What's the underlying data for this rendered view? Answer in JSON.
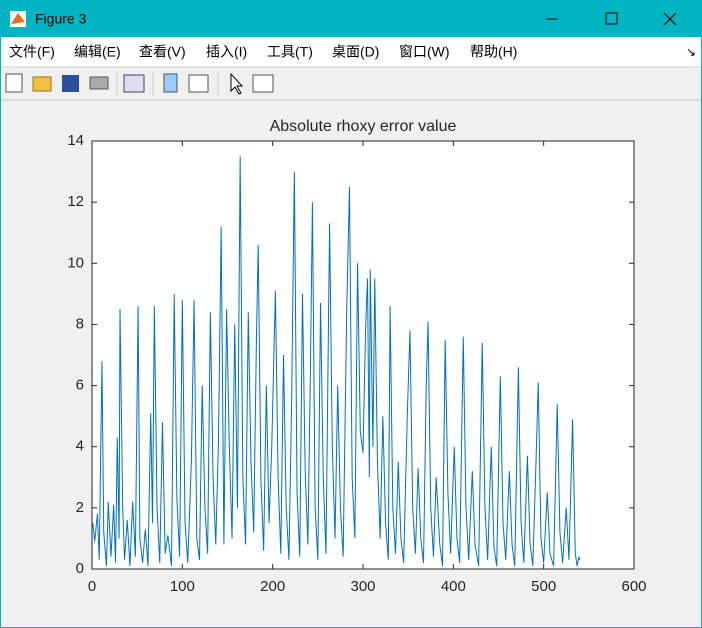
{
  "window": {
    "title": "Figure 3",
    "menu": [
      "文件(F)",
      "编辑(E)",
      "查看(V)",
      "插入(I)",
      "工具(T)",
      "桌面(D)",
      "窗口(W)",
      "帮助(H)"
    ],
    "menu_arrow": "↘"
  },
  "chart_data": {
    "type": "line",
    "title": "Absolute rhoxy error value",
    "x": [
      1,
      3,
      6,
      8,
      11,
      13,
      16,
      18,
      21,
      24,
      26,
      28,
      30,
      31,
      34,
      36,
      39,
      42,
      45,
      48,
      51,
      53,
      56,
      59,
      62,
      65,
      67,
      69,
      72,
      75,
      78,
      81,
      84,
      88,
      91,
      94,
      97,
      100,
      103,
      106,
      110,
      113,
      116,
      119,
      122,
      125,
      128,
      131,
      134,
      137,
      140,
      143,
      146,
      149,
      152,
      155,
      158,
      161,
      164,
      167,
      170,
      173,
      176,
      179,
      182,
      184,
      187,
      190,
      193,
      196,
      199,
      203,
      206,
      209,
      212,
      215,
      218,
      221,
      224,
      227,
      230,
      233,
      236,
      239,
      242,
      244,
      247,
      250,
      253,
      256,
      259,
      263,
      266,
      269,
      272,
      275,
      278,
      282,
      285,
      288,
      291,
      294,
      297,
      300,
      303,
      305,
      307,
      308,
      311,
      313,
      316,
      319,
      322,
      325,
      328,
      330,
      333,
      336,
      339,
      342,
      345,
      349,
      352,
      355,
      358,
      361,
      364,
      367,
      370,
      372,
      375,
      378,
      381,
      385,
      388,
      391,
      394,
      397,
      401,
      404,
      407,
      411,
      414,
      417,
      421,
      424,
      428,
      432,
      435,
      438,
      442,
      445,
      448,
      452,
      455,
      458,
      462,
      465,
      468,
      472,
      475,
      478,
      482,
      485,
      488,
      491,
      494,
      497,
      500,
      504,
      507,
      511,
      515,
      518,
      521,
      525,
      528,
      532,
      535,
      537,
      539,
      540
    ],
    "values": [
      1.5,
      0.9,
      1.8,
      0.3,
      6.8,
      1.2,
      0.1,
      2.2,
      0.4,
      2.1,
      0.2,
      4.3,
      1.0,
      8.5,
      2.0,
      0.3,
      1.6,
      0.1,
      2.2,
      0.4,
      8.6,
      1.0,
      0.2,
      1.3,
      0.1,
      5.1,
      1.5,
      8.6,
      2.0,
      0.2,
      4.8,
      0.5,
      1.1,
      0.1,
      9.0,
      2.3,
      0.4,
      8.8,
      1.5,
      0.2,
      3.5,
      8.8,
      1.0,
      0.3,
      6.0,
      2.0,
      0.5,
      8.4,
      3.0,
      0.8,
      4.2,
      11.2,
      0.8,
      8.5,
      4.0,
      1.0,
      8.0,
      2.0,
      13.5,
      3.0,
      0.8,
      8.4,
      3.5,
      1.2,
      7.5,
      10.6,
      2.9,
      0.6,
      6.0,
      1.5,
      4.0,
      9.1,
      3.0,
      0.5,
      7.0,
      2.0,
      0.3,
      5.5,
      13.0,
      2.5,
      0.4,
      9.0,
      3.2,
      0.8,
      7.0,
      12.0,
      2.0,
      0.3,
      8.7,
      3.0,
      0.5,
      11.3,
      4.0,
      1.0,
      6.0,
      2.0,
      0.4,
      8.5,
      12.5,
      3.0,
      1.0,
      10.0,
      4.5,
      3.8,
      8.0,
      9.5,
      3.0,
      9.8,
      4.0,
      9.5,
      3.5,
      1.0,
      5.0,
      1.5,
      0.3,
      8.6,
      2.0,
      0.5,
      3.5,
      1.0,
      0.2,
      5.0,
      7.8,
      2.0,
      0.5,
      3.3,
      1.0,
      0.2,
      6.0,
      8.1,
      2.0,
      0.4,
      3.0,
      0.8,
      0.1,
      7.5,
      2.5,
      0.5,
      4.0,
      1.0,
      0.2,
      7.6,
      2.0,
      0.3,
      3.2,
      0.8,
      0.1,
      7.4,
      2.0,
      0.3,
      4.0,
      0.7,
      0.1,
      6.3,
      1.5,
      0.3,
      3.2,
      0.8,
      0.1,
      6.6,
      1.5,
      0.2,
      3.7,
      0.8,
      0.1,
      3.0,
      6.1,
      1.0,
      0.2,
      2.5,
      0.5,
      0.1,
      5.4,
      1.2,
      0.2,
      2.0,
      0.3,
      4.9,
      0.5,
      0.1,
      0.4,
      0.3
    ],
    "color": "#0072bd",
    "xlim": [
      0,
      600
    ],
    "ylim": [
      0,
      14
    ],
    "xticks": [
      0,
      100,
      200,
      300,
      400,
      500,
      600
    ],
    "yticks": [
      0,
      2,
      4,
      6,
      8,
      10,
      12,
      14
    ]
  }
}
